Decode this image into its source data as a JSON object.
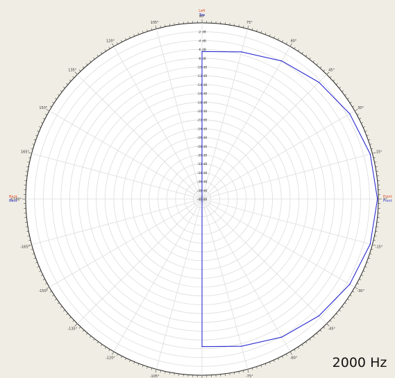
{
  "chart_data": {
    "type": "polar",
    "frequency_label": "2000 Hz",
    "direction_labels": {
      "top_a": "Left",
      "top_b": "Top",
      "right_a": "Front",
      "right_b": "Front",
      "left_a": "Back",
      "left_b": "Back"
    },
    "angle_labels": [
      "0°",
      "15°",
      "30°",
      "45°",
      "60°",
      "75°",
      "90°",
      "105°",
      "120°",
      "135°",
      "150°",
      "165°",
      "±180°",
      "-165°",
      "-150°",
      "-135°",
      "-120°",
      "-105°",
      "-90°",
      "-75°",
      "-60°",
      "-45°",
      "-30°",
      "-15°"
    ],
    "radial_labels": [
      "-2 dB",
      "-4 dB",
      "-6 dB",
      "-8 dB",
      "-10 dB",
      "-12 dB",
      "-14 dB",
      "-16 dB",
      "-18 dB",
      "-20 dB",
      "-22 dB",
      "-24 dB",
      "-26 dB",
      "-28 dB",
      "-30 dB",
      "-32 dB",
      "-34 dB",
      "-36 dB",
      "-38 dB",
      "-40 dB"
    ],
    "radial_range_db": [
      -40,
      0
    ],
    "angular_grid_step_deg": 15,
    "radial_grid_step_db": 2,
    "series": [
      {
        "color": "#2a2ad0",
        "angles_deg": [
          -90,
          -75,
          -60,
          -45,
          -30,
          -15,
          0,
          15,
          30,
          45,
          60,
          75,
          90
        ],
        "values_db": [
          -6.5,
          -5.4,
          -3.8,
          -2.5,
          -1.3,
          -0.5,
          -0.2,
          -0.5,
          -1.3,
          -2.5,
          -3.8,
          -5.4,
          -6.5
        ]
      }
    ]
  }
}
